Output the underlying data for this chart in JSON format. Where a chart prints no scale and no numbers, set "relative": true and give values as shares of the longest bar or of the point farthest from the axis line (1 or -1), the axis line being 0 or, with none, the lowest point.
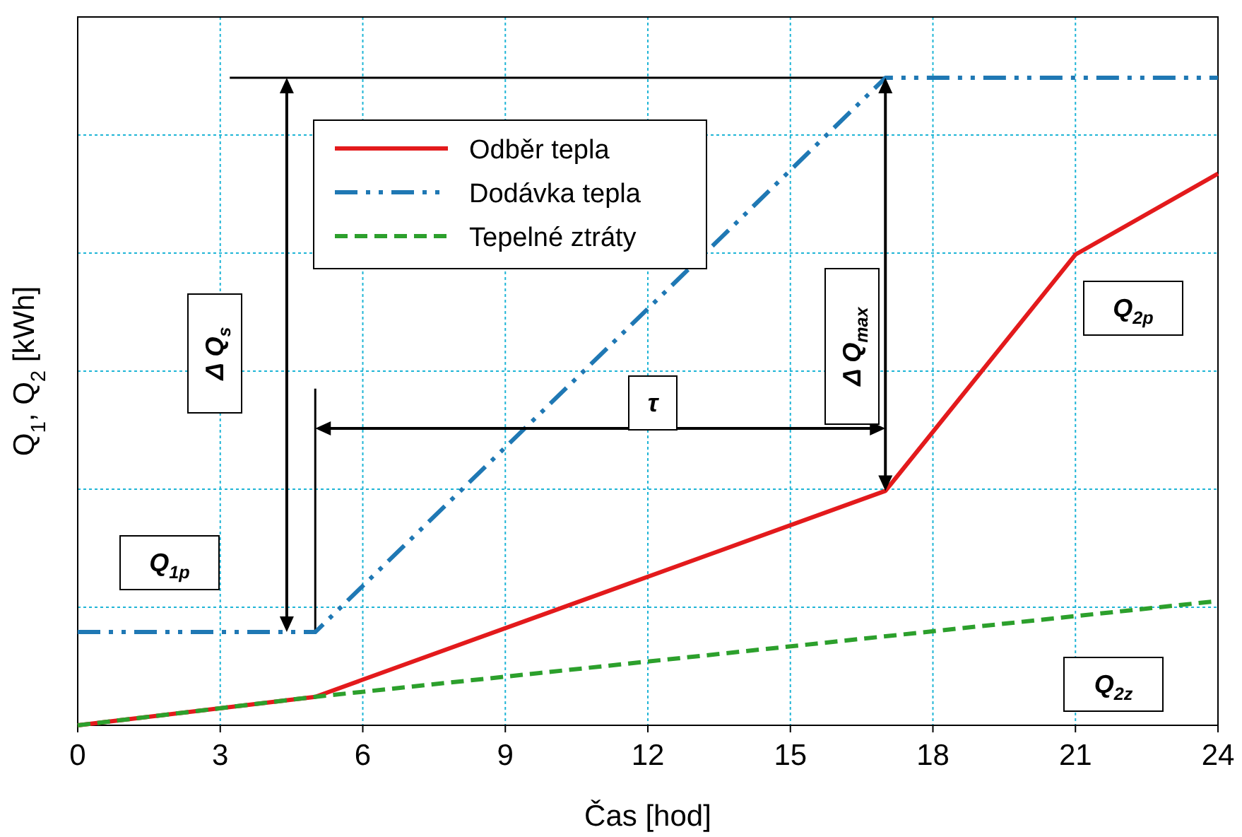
{
  "chart_data": {
    "type": "line",
    "xlabel": "Čas [hod]",
    "ylabel": "Q$_{1}$,  Q$_{2}$ [kWh]",
    "relative": true,
    "xlim": [
      0,
      24
    ],
    "xticks": [
      0,
      3,
      6,
      9,
      12,
      15,
      18,
      21,
      24
    ],
    "grid": true,
    "legend": "top",
    "marker": "none",
    "series": [
      {
        "name": "Odběr tepla",
        "color": "#e31a1c",
        "line_style": "solid",
        "x": [
          0,
          5,
          17,
          21,
          24
        ],
        "values": [
          0,
          0.044,
          0.362,
          0.727,
          0.852
        ]
      },
      {
        "name": "Dodávka tepla",
        "color": "#1f78b4",
        "line_style": "dashdotdot",
        "x": [
          0,
          5,
          17,
          24
        ],
        "values": [
          0.144,
          0.144,
          1,
          1
        ]
      },
      {
        "name": "Tepelné ztráty",
        "color": "#2ca02c",
        "line_style": "dashed",
        "x": [
          0,
          5,
          24
        ],
        "values": [
          0,
          0.044,
          0.192
        ]
      }
    ],
    "ref_lines": [
      {
        "axis": "y",
        "value": 1,
        "color": "#000000"
      },
      {
        "axis": "x",
        "value": 5,
        "color": "#000000"
      }
    ],
    "annotations": [
      "Δ Q$_{s}$",
      "Δ Q$_{max}$",
      "τ",
      "Q$_{1p}$",
      "Q$_{2p}$",
      "Q$_{2z}$"
    ]
  }
}
